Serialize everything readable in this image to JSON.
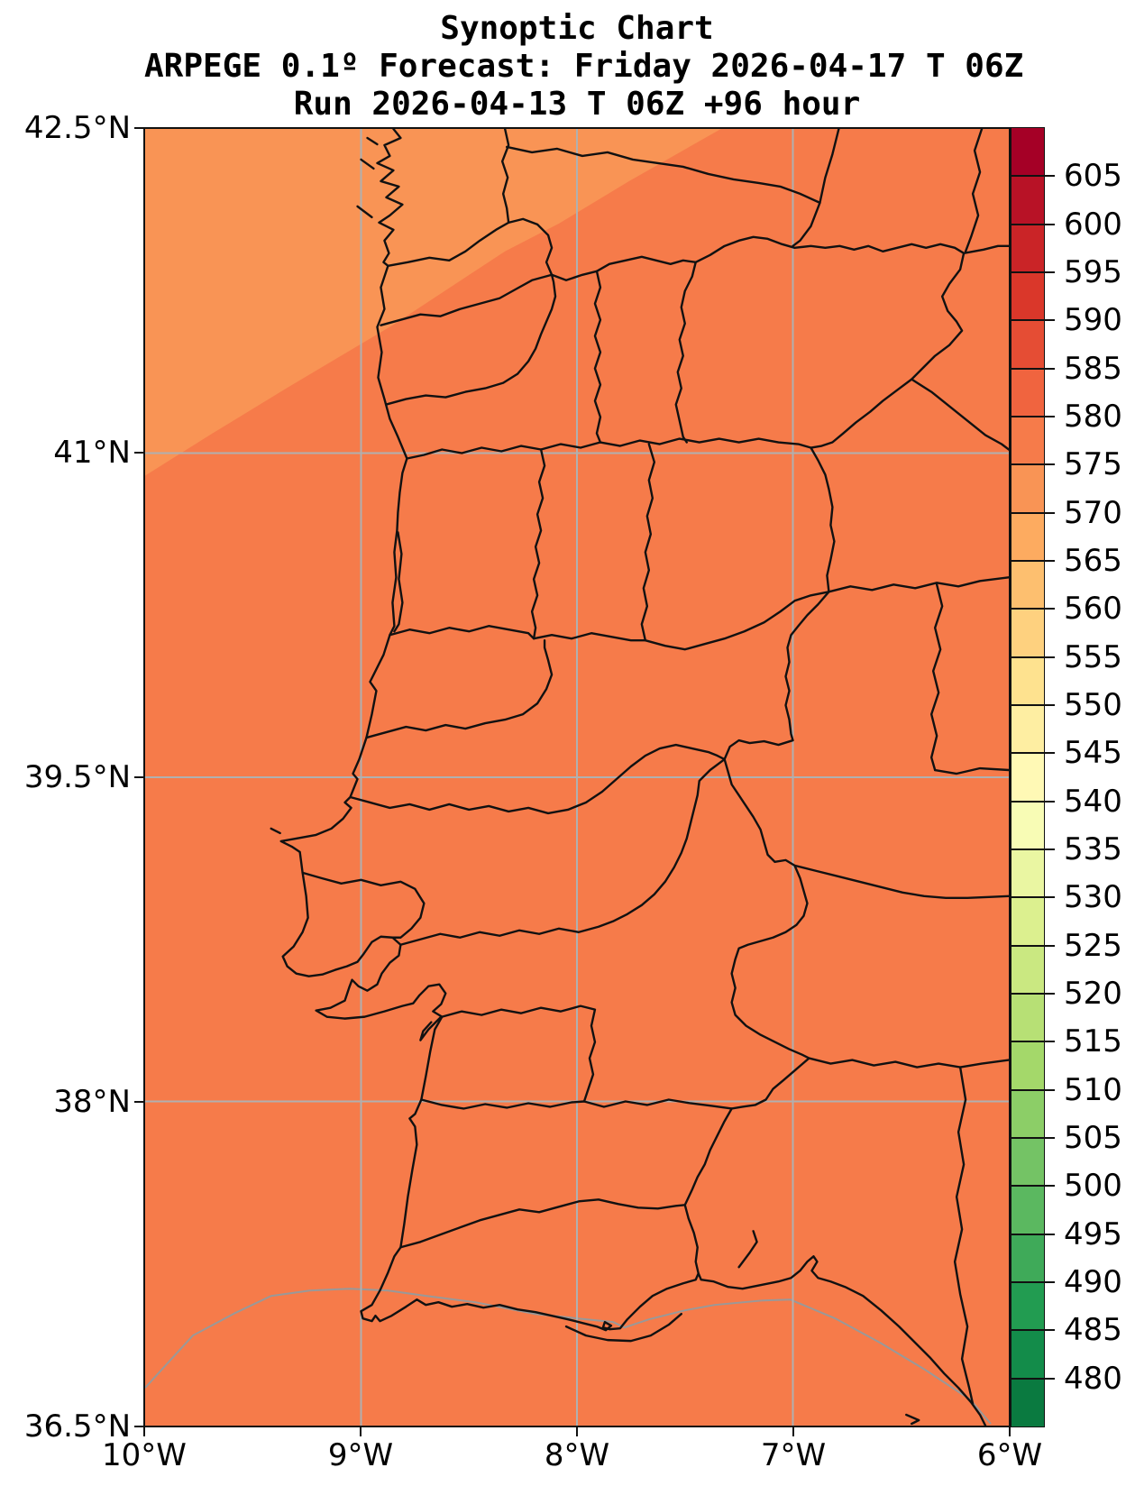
{
  "title": {
    "line1": "Synoptic Chart",
    "line2": "ARPEGE 0.1º Forecast: Friday 2026-04-17 T 06Z",
    "line3": "Run 2026-04-13 T 06Z +96 hour"
  },
  "chart_data": {
    "type": "heatmap",
    "title": "Synoptic Chart",
    "subtitle": "ARPEGE 0.1º Forecast: Friday 2026-04-17 T 06Z",
    "run_line": "Run 2026-04-13 T 06Z +96 hour",
    "x_axis": {
      "ticks": [
        {
          "label": "10°W",
          "value": -10
        },
        {
          "label": "9°W",
          "value": -9
        },
        {
          "label": "8°W",
          "value": -8
        },
        {
          "label": "7°W",
          "value": -7
        },
        {
          "label": "6°W",
          "value": -6
        }
      ],
      "range": [
        -10,
        -6
      ]
    },
    "y_axis": {
      "ticks": [
        {
          "label": "42.5°N",
          "value": 42.5
        },
        {
          "label": "41°N",
          "value": 41
        },
        {
          "label": "39.5°N",
          "value": 39.5
        },
        {
          "label": "38°N",
          "value": 38
        },
        {
          "label": "36.5°N",
          "value": 36.5
        }
      ],
      "range": [
        36.5,
        42.5
      ]
    },
    "grid": {
      "lon_lines": [
        -9,
        -8,
        -7
      ],
      "lat_lines": [
        41,
        39.5,
        38
      ],
      "color": "#b0b0b0"
    },
    "region": "Portugal and western Spain coastline with district/province boundaries",
    "filled_regions": [
      {
        "band": "575-580",
        "color": "#f67b4a",
        "area": "most of the domain"
      },
      {
        "band": "570-575",
        "color": "#f99455",
        "area": "northwest corner above diagonal boundary"
      }
    ],
    "colorbar": {
      "orientation": "vertical",
      "value_range": [
        475,
        610
      ],
      "tick_step": 5,
      "ticks": [
        605,
        600,
        595,
        590,
        585,
        580,
        575,
        570,
        565,
        560,
        555,
        550,
        545,
        540,
        535,
        530,
        525,
        520,
        515,
        510,
        505,
        500,
        495,
        490,
        485,
        480
      ],
      "segments": [
        {
          "from": 605,
          "to": 610,
          "color": "#a50026"
        },
        {
          "from": 600,
          "to": 605,
          "color": "#b81226"
        },
        {
          "from": 595,
          "to": 600,
          "color": "#ca2427"
        },
        {
          "from": 590,
          "to": 595,
          "color": "#da372a"
        },
        {
          "from": 585,
          "to": 590,
          "color": "#e54d34"
        },
        {
          "from": 580,
          "to": 585,
          "color": "#f0643f"
        },
        {
          "from": 575,
          "to": 580,
          "color": "#f67b4a"
        },
        {
          "from": 570,
          "to": 575,
          "color": "#f99455"
        },
        {
          "from": 565,
          "to": 570,
          "color": "#fdab60"
        },
        {
          "from": 560,
          "to": 565,
          "color": "#fdbf6f"
        },
        {
          "from": 555,
          "to": 560,
          "color": "#fed17f"
        },
        {
          "from": 550,
          "to": 555,
          "color": "#fee28f"
        },
        {
          "from": 545,
          "to": 550,
          "color": "#feeea2"
        },
        {
          "from": 540,
          "to": 545,
          "color": "#fff9b5"
        },
        {
          "from": 535,
          "to": 540,
          "color": "#f8fcb5"
        },
        {
          "from": 530,
          "to": 535,
          "color": "#eaf6a2"
        },
        {
          "from": 525,
          "to": 530,
          "color": "#dcf08f"
        },
        {
          "from": 520,
          "to": 525,
          "color": "#cae881"
        },
        {
          "from": 515,
          "to": 520,
          "color": "#b7e075"
        },
        {
          "from": 510,
          "to": 515,
          "color": "#a4d86a"
        },
        {
          "from": 505,
          "to": 510,
          "color": "#8cce67"
        },
        {
          "from": 500,
          "to": 505,
          "color": "#74c365"
        },
        {
          "from": 495,
          "to": 500,
          "color": "#5bb860"
        },
        {
          "from": 490,
          "to": 495,
          "color": "#3faa59"
        },
        {
          "from": 485,
          "to": 490,
          "color": "#229c51"
        },
        {
          "from": 480,
          "to": 485,
          "color": "#138c4a"
        },
        {
          "from": 475,
          "to": 480,
          "color": "#0a7a40"
        }
      ]
    }
  },
  "colors": {
    "boundary_line": "#111111",
    "low_res_coast": "#999999",
    "axis": "#000000"
  }
}
